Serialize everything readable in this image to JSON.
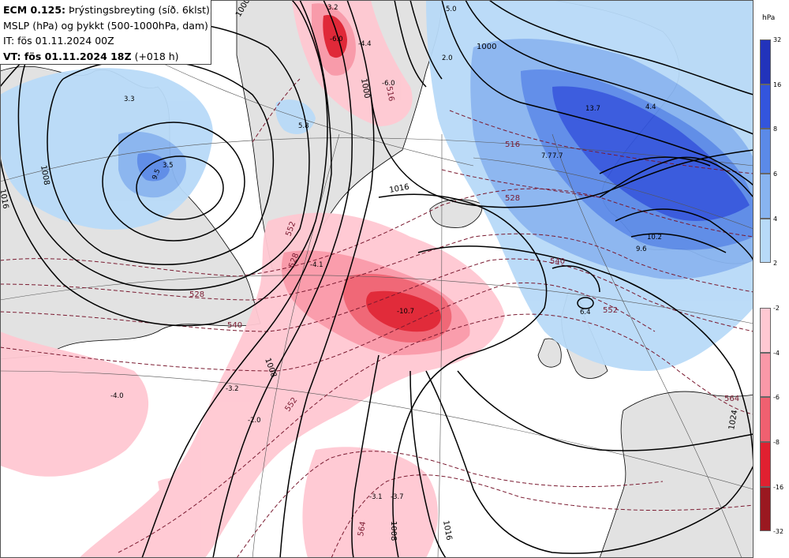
{
  "header": {
    "model": "ECM 0.125:",
    "title_rest": "Þrýstingsbreyting (síð. 6klst)",
    "line2": "MSLP (hPa) og þykkt (500-1000hPa, dam)",
    "line3": "IT: fös 01.11.2024 00Z",
    "line4_bold": "VT: fös 01.11.2024 18Z",
    "line4_rest": "(+018 h)"
  },
  "legend": {
    "unit": "hPa",
    "blue_ticks": [
      "32",
      "16",
      "8",
      "6",
      "4",
      "2"
    ],
    "red_ticks": [
      "-2",
      "-4",
      "-6",
      "-8",
      "-16",
      "-32"
    ],
    "blue_colors": [
      "#2233bb",
      "#3355dd",
      "#5b8ae8",
      "#88b4f0",
      "#b8daf8"
    ],
    "red_colors": [
      "#ffc8d2",
      "#fa98a8",
      "#f06070",
      "#e02030",
      "#9a1820"
    ]
  },
  "map": {
    "land_color": "#e2e2e2",
    "isobar_labels": [
      "1000",
      "1000",
      "1008",
      "1016",
      "1016",
      "1000",
      "1008",
      "1016",
      "1008",
      "1024"
    ],
    "thickness_labels": [
      "516",
      "528",
      "540",
      "552",
      "564",
      "528",
      "540",
      "552",
      "564",
      "552",
      "516",
      "528"
    ],
    "tendency_labels": [
      "3.5",
      "9.5",
      "3.3",
      "5.8",
      "3.2",
      "-6.0",
      "-4.4",
      "-6.0",
      "-4.1",
      "-10.7",
      "-4.0",
      "-3.2",
      "-2.0",
      "-3.1",
      "-3.7",
      "5.0",
      "2.0",
      "13.7",
      "7.7",
      "4.4",
      "10.2",
      "9.6",
      "6.4",
      "7.7"
    ]
  }
}
